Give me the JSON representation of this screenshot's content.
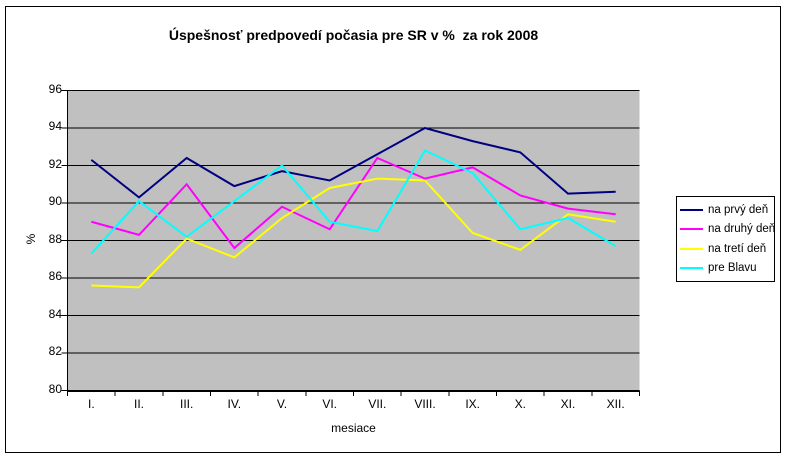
{
  "chart_data": {
    "type": "line",
    "title": "Úspešnosť predpovedí počasia pre SR v %  za rok 2008",
    "xlabel": "mesiace",
    "ylabel": "%",
    "categories": [
      "I.",
      "II.",
      "III.",
      "IV.",
      "V.",
      "VI.",
      "VII.",
      "VIII.",
      "IX.",
      "X.",
      "XI.",
      "XII."
    ],
    "series": [
      {
        "name": "na prvý deň",
        "color": "#000080",
        "values": [
          92.3,
          90.3,
          92.4,
          90.9,
          91.7,
          91.2,
          92.6,
          94.0,
          93.3,
          92.7,
          90.5,
          90.6
        ]
      },
      {
        "name": "na druhý deň",
        "color": "#FF00FF",
        "values": [
          89.0,
          88.3,
          91.0,
          87.6,
          89.8,
          88.6,
          92.4,
          91.3,
          91.9,
          90.4,
          89.7,
          89.4
        ]
      },
      {
        "name": "na tretí deň",
        "color": "#FFFF00",
        "values": [
          85.6,
          85.5,
          88.1,
          87.1,
          89.2,
          90.8,
          91.3,
          91.2,
          88.4,
          87.5,
          89.4,
          89.0
        ]
      },
      {
        "name": "pre Blavu",
        "color": "#00FFFF",
        "values": [
          87.3,
          90.1,
          88.2,
          90.1,
          92.0,
          89.0,
          88.5,
          92.8,
          91.6,
          88.6,
          89.2,
          87.7
        ]
      }
    ],
    "ylim": [
      80,
      96
    ],
    "yticks": [
      80,
      82,
      84,
      86,
      88,
      90,
      92,
      94,
      96
    ],
    "grid": true,
    "legend_position": "right",
    "plot_bg": "#C0C0C0"
  }
}
